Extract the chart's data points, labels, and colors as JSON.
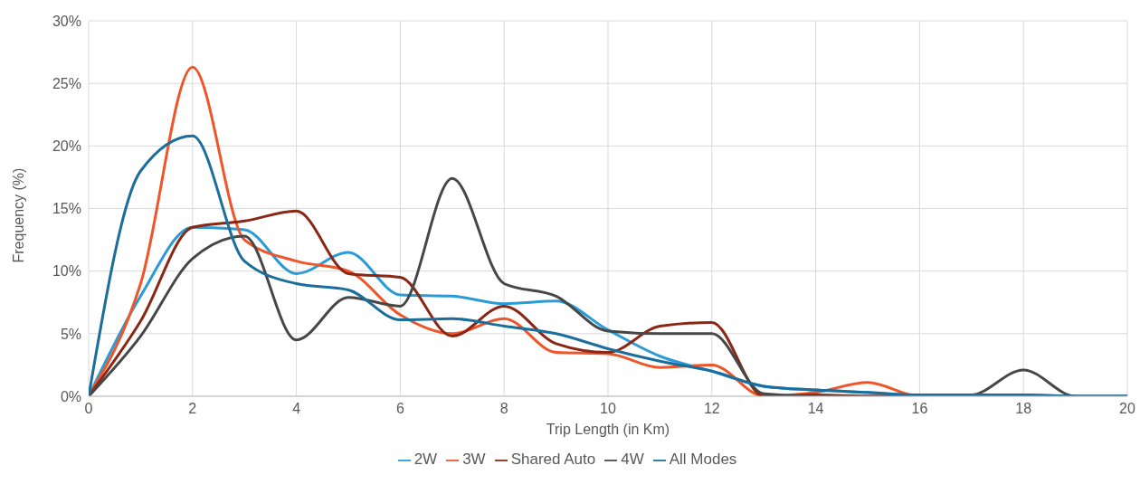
{
  "chart_data": {
    "type": "line",
    "xlabel": "Trip Length (in Km)",
    "ylabel": "Frequency (%)",
    "x": [
      0,
      1,
      2,
      3,
      4,
      5,
      6,
      7,
      8,
      9,
      10,
      11,
      12,
      13,
      14,
      15,
      16,
      17,
      18,
      19,
      20
    ],
    "series": [
      {
        "name": "2W",
        "color": "#2a9bd6",
        "values": [
          0,
          8,
          13.5,
          13.3,
          9.8,
          11.5,
          8.1,
          8,
          7.4,
          7.6,
          5.3,
          3.2,
          2,
          0.8,
          0.5,
          0.3,
          0.1,
          0.1,
          0.1,
          0,
          0
        ]
      },
      {
        "name": "3W",
        "color": "#f0552a",
        "values": [
          0,
          9,
          26.3,
          12.5,
          10.8,
          10,
          6.5,
          5,
          6.2,
          3.5,
          3.4,
          2.3,
          2.5,
          0,
          0.3,
          1.1,
          0,
          0,
          null,
          null,
          null
        ]
      },
      {
        "name": "Shared Auto",
        "color": "#8c2614",
        "values": [
          0,
          6,
          13.5,
          14,
          14.8,
          9.8,
          9.5,
          4.8,
          7.2,
          4.2,
          3.5,
          5.6,
          5.9,
          0,
          0.1,
          0,
          0,
          0,
          null,
          null,
          null
        ]
      },
      {
        "name": "4W",
        "color": "#474747",
        "values": [
          0,
          4.8,
          11,
          12.8,
          4.5,
          7.9,
          7.2,
          17.4,
          9,
          8,
          5.2,
          5,
          5,
          0.2,
          0,
          0,
          0,
          0.1,
          2.1,
          0,
          0
        ]
      },
      {
        "name": "All Modes",
        "color": "#1b6e9b",
        "values": [
          0,
          18,
          20.8,
          10.8,
          9,
          8.5,
          6.1,
          6.2,
          5.6,
          5,
          3.8,
          2.8,
          2,
          0.8,
          0.5,
          0.3,
          0.1,
          0.1,
          0.1,
          0,
          0
        ]
      }
    ],
    "xlim": [
      0,
      20
    ],
    "xticks": [
      0,
      2,
      4,
      6,
      8,
      10,
      12,
      14,
      16,
      18,
      20
    ],
    "ylim": [
      0,
      30
    ],
    "yticks": [
      {
        "value": 0,
        "label": "0%"
      },
      {
        "value": 5,
        "label": "5%"
      },
      {
        "value": 10,
        "label": "10%"
      },
      {
        "value": 15,
        "label": "15%"
      },
      {
        "value": 20,
        "label": "20%"
      },
      {
        "value": 25,
        "label": "25%"
      },
      {
        "value": 30,
        "label": "30%"
      }
    ],
    "grid": true,
    "legend": "bottom",
    "marker": "none",
    "line_style": "solid"
  }
}
